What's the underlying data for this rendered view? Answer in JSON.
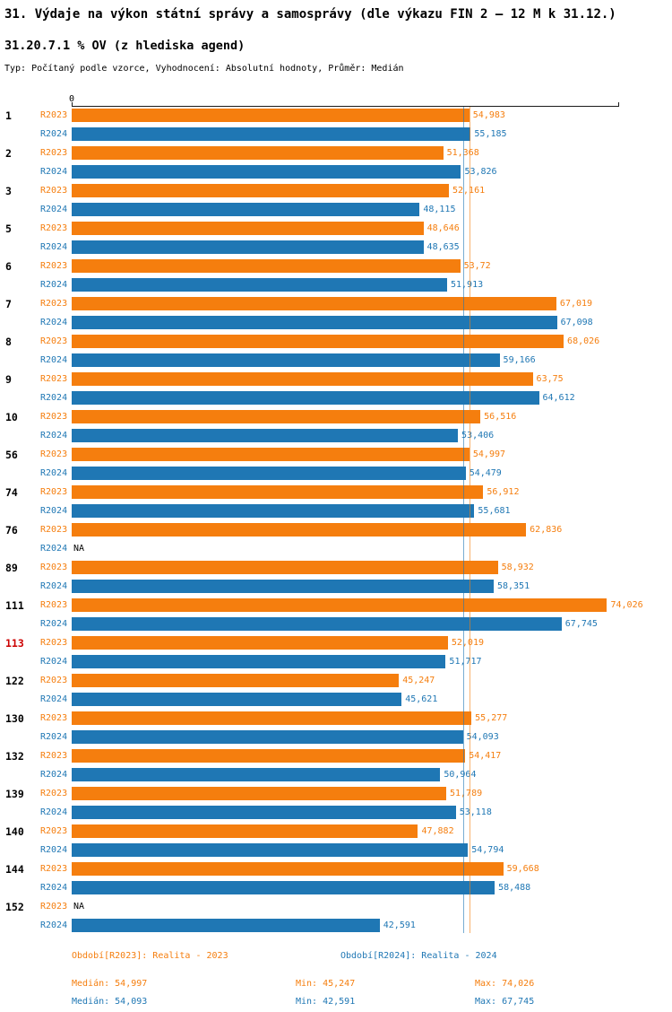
{
  "title": "31. Výdaje na výkon státní správy a samosprávy (dle výkazu FIN 2 – 12 M k 31.12.)",
  "subtitle": "31.20.7.1 % OV (z hlediska agend)",
  "meta": "Typ: Počítaný podle vzorce, Vyhodnocení: Absolutní hodnoty, Průměr: Medián",
  "chart_data": {
    "type": "bar",
    "orientation": "horizontal",
    "title": "31.20.7.1 % OV (z hlediska agend)",
    "xlabel": "",
    "ylabel": "",
    "xlim": [
      0,
      75.7
    ],
    "grid": false,
    "legend_position": "bottom",
    "axis_zero_label": "0",
    "na_label": "NA",
    "colors": {
      "r2023": "#F57E0E",
      "r2024": "#1F77B4",
      "highlight": "#CC0000"
    },
    "series": [
      {
        "key": "r2023",
        "name": "R2023",
        "legend": "Realita - 2023"
      },
      {
        "key": "r2024",
        "name": "R2024",
        "legend": "Realita - 2024"
      }
    ],
    "medians": {
      "r2023": 54.997,
      "r2024": 54.093
    },
    "groups": [
      {
        "num": "1",
        "highlight": false,
        "r2023": {
          "v": 54.983,
          "label": "54,983"
        },
        "r2024": {
          "v": 55.185,
          "label": "55,185"
        }
      },
      {
        "num": "2",
        "highlight": false,
        "r2023": {
          "v": 51.368,
          "label": "51,368"
        },
        "r2024": {
          "v": 53.826,
          "label": "53,826"
        }
      },
      {
        "num": "3",
        "highlight": false,
        "r2023": {
          "v": 52.161,
          "label": "52,161"
        },
        "r2024": {
          "v": 48.115,
          "label": "48,115"
        }
      },
      {
        "num": "5",
        "highlight": false,
        "r2023": {
          "v": 48.646,
          "label": "48,646"
        },
        "r2024": {
          "v": 48.635,
          "label": "48,635"
        }
      },
      {
        "num": "6",
        "highlight": false,
        "r2023": {
          "v": 53.72,
          "label": "53,72"
        },
        "r2024": {
          "v": 51.913,
          "label": "51,913"
        }
      },
      {
        "num": "7",
        "highlight": false,
        "r2023": {
          "v": 67.019,
          "label": "67,019"
        },
        "r2024": {
          "v": 67.098,
          "label": "67,098"
        }
      },
      {
        "num": "8",
        "highlight": false,
        "r2023": {
          "v": 68.026,
          "label": "68,026"
        },
        "r2024": {
          "v": 59.166,
          "label": "59,166"
        }
      },
      {
        "num": "9",
        "highlight": false,
        "r2023": {
          "v": 63.75,
          "label": "63,75"
        },
        "r2024": {
          "v": 64.612,
          "label": "64,612"
        }
      },
      {
        "num": "10",
        "highlight": false,
        "r2023": {
          "v": 56.516,
          "label": "56,516"
        },
        "r2024": {
          "v": 53.406,
          "label": "53,406"
        }
      },
      {
        "num": "56",
        "highlight": false,
        "r2023": {
          "v": 54.997,
          "label": "54,997"
        },
        "r2024": {
          "v": 54.479,
          "label": "54,479"
        }
      },
      {
        "num": "74",
        "highlight": false,
        "r2023": {
          "v": 56.912,
          "label": "56,912"
        },
        "r2024": {
          "v": 55.681,
          "label": "55,681"
        }
      },
      {
        "num": "76",
        "highlight": false,
        "r2023": {
          "v": 62.836,
          "label": "62,836"
        },
        "r2024": null
      },
      {
        "num": "89",
        "highlight": false,
        "r2023": {
          "v": 58.932,
          "label": "58,932"
        },
        "r2024": {
          "v": 58.351,
          "label": "58,351"
        }
      },
      {
        "num": "111",
        "highlight": false,
        "r2023": {
          "v": 74.026,
          "label": "74,026"
        },
        "r2024": {
          "v": 67.745,
          "label": "67,745"
        }
      },
      {
        "num": "113",
        "highlight": true,
        "r2023": {
          "v": 52.019,
          "label": "52,019"
        },
        "r2024": {
          "v": 51.717,
          "label": "51,717"
        }
      },
      {
        "num": "122",
        "highlight": false,
        "r2023": {
          "v": 45.247,
          "label": "45,247"
        },
        "r2024": {
          "v": 45.621,
          "label": "45,621"
        }
      },
      {
        "num": "130",
        "highlight": false,
        "r2023": {
          "v": 55.277,
          "label": "55,277"
        },
        "r2024": {
          "v": 54.093,
          "label": "54,093"
        }
      },
      {
        "num": "132",
        "highlight": false,
        "r2023": {
          "v": 54.417,
          "label": "54,417"
        },
        "r2024": {
          "v": 50.964,
          "label": "50,964"
        }
      },
      {
        "num": "139",
        "highlight": false,
        "r2023": {
          "v": 51.789,
          "label": "51,789"
        },
        "r2024": {
          "v": 53.118,
          "label": "53,118"
        }
      },
      {
        "num": "140",
        "highlight": false,
        "r2023": {
          "v": 47.882,
          "label": "47,882"
        },
        "r2024": {
          "v": 54.794,
          "label": "54,794"
        }
      },
      {
        "num": "144",
        "highlight": false,
        "r2023": {
          "v": 59.668,
          "label": "59,668"
        },
        "r2024": {
          "v": 58.488,
          "label": "58,488"
        }
      },
      {
        "num": "152",
        "highlight": false,
        "r2023": null,
        "r2024": {
          "v": 42.591,
          "label": "42,591"
        }
      }
    ]
  },
  "legend": {
    "r2023": "Období[R2023]: Realita - 2023",
    "r2024": "Období[R2024]: Realita - 2024"
  },
  "stats": {
    "r2023": {
      "median": "Medián: 54,997",
      "min": "Min: 45,247",
      "max": "Max: 74,026"
    },
    "r2024": {
      "median": "Medián: 54,093",
      "min": "Min: 42,591",
      "max": "Max: 67,745"
    }
  }
}
